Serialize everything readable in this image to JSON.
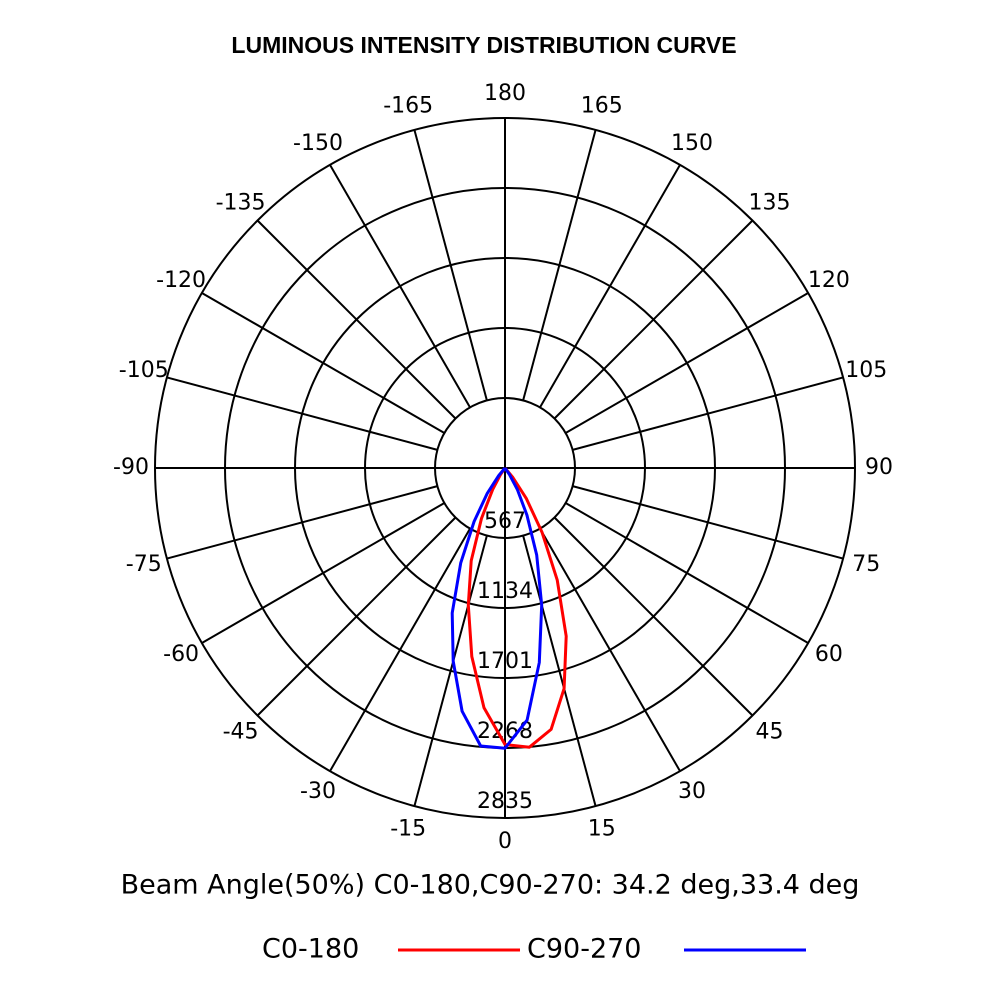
{
  "chart_data": {
    "type": "polar",
    "title": "LUMINOUS INTENSITY DISTRIBUTION CURVE",
    "annotation": "Beam Angle(50%) C0-180,C90-270: 34.2 deg,33.4 deg",
    "x": [
      -45,
      -40,
      -35,
      -30,
      -25,
      -20,
      -15,
      -10,
      -5,
      0,
      5,
      10,
      15,
      20,
      25,
      30,
      35,
      40,
      45
    ],
    "series": [
      {
        "name": "C0-180",
        "color": "#ff0000",
        "values": [
          0,
          0,
          60,
          200,
          450,
          800,
          1150,
          1550,
          1950,
          2240,
          2270,
          2150,
          1850,
          1450,
          1000,
          600,
          300,
          100,
          0
        ]
      },
      {
        "name": "C90-270",
        "color": "#0000ff",
        "values": [
          0,
          80,
          250,
          500,
          850,
          1250,
          1620,
          2000,
          2260,
          2270,
          2050,
          1600,
          1150,
          750,
          420,
          200,
          60,
          0,
          0
        ]
      }
    ],
    "rlim": [
      0,
      2835
    ],
    "rticks": [
      567,
      1134,
      1701,
      2268,
      2835
    ],
    "angle_ticks": [
      0,
      15,
      30,
      45,
      60,
      75,
      90,
      105,
      120,
      135,
      150,
      165,
      180,
      -165,
      -150,
      -135,
      -120,
      -105,
      -90,
      -75,
      -60,
      -45,
      -30,
      -15
    ]
  }
}
